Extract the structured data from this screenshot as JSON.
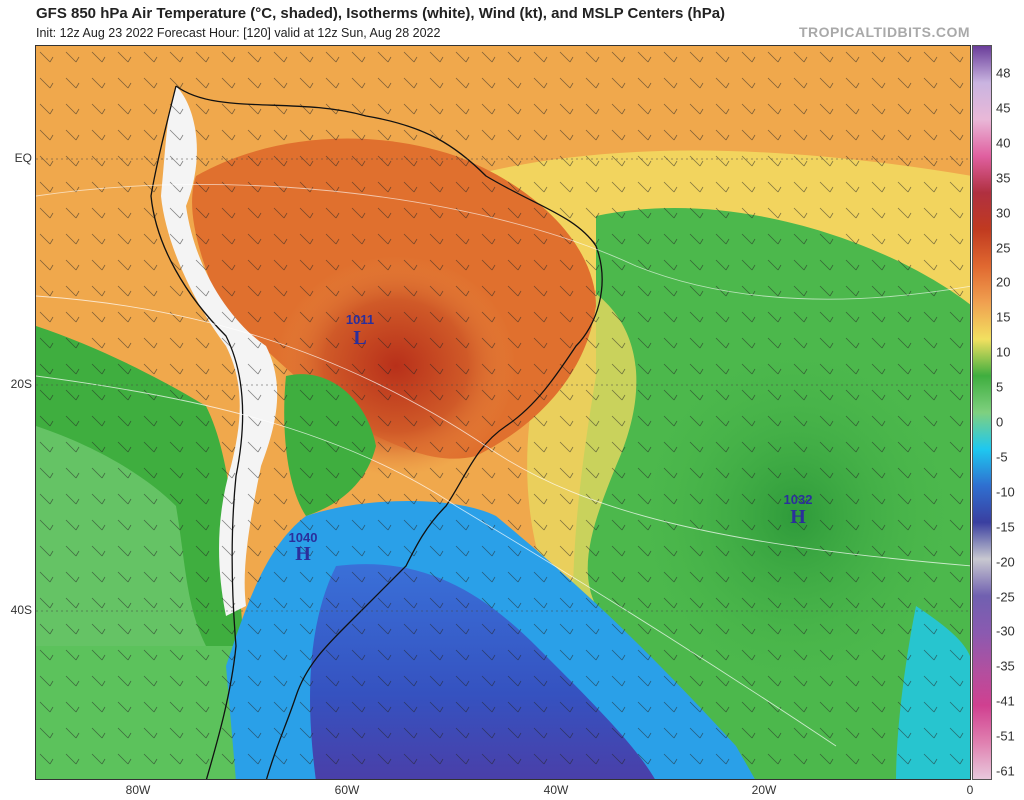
{
  "header": {
    "title": "GFS 850 hPa Air Temperature (°C, shaded), Isotherms (white), Wind (kt), and MSLP Centers (hPa)",
    "subtitle": "Init: 12z Aug 23 2022   Forecast Hour: [120]   valid at 12z Sun, Aug 28 2022",
    "brand": "TROPICALTIDBITS.COM"
  },
  "axes": {
    "lat_labels": [
      "EQ",
      "20S",
      "40S"
    ],
    "lon_labels": [
      "80W",
      "60W",
      "40W",
      "20W",
      "0"
    ]
  },
  "colorbar": {
    "labels": [
      "48",
      "45",
      "40",
      "35",
      "30",
      "25",
      "20",
      "15",
      "10",
      "5",
      "0",
      "-5",
      "-10",
      "-15",
      "-20",
      "-25",
      "-30",
      "-35",
      "-41",
      "-51",
      "-61"
    ],
    "colors": [
      "#6a3d9a",
      "#c9b4e0",
      "#e9b8d8",
      "#e060a0",
      "#b03040",
      "#c03a20",
      "#e06830",
      "#f0a050",
      "#f2e060",
      "#3fae3f",
      "#7fd07f",
      "#1ec8f0",
      "#2f6fd0",
      "#3a3fa0",
      "#c8c8d0",
      "#7060b0",
      "#8a5ab0",
      "#b050a0",
      "#d04090",
      "#e080b0",
      "#e8c8dc"
    ]
  },
  "pressure_centers": [
    {
      "value": "1011",
      "letter": "L"
    },
    {
      "value": "1040",
      "letter": "H"
    },
    {
      "value": "1032",
      "letter": "H"
    }
  ],
  "legend_colors": {
    "hot": "#c84a20",
    "warm": "#f0a040",
    "mild": "#f2e068",
    "cool": "#3aa83a",
    "cold": "#2aa0e8",
    "frigid": "#3a52c0",
    "land_white": "#f4f4f4"
  }
}
